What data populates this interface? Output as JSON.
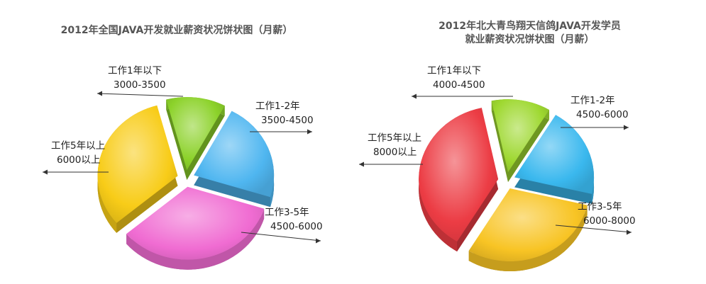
{
  "chart_data": [
    {
      "type": "pie",
      "title": "2012年全国JAVA开发就业薪资状况饼状图（月薪）",
      "slices": [
        {
          "label": "工作1年以下",
          "range": "3000-3500",
          "value": 12,
          "color": "#8cd22a"
        },
        {
          "label": "工作1-2年",
          "range": "3500-4500",
          "value": 22,
          "color": "#4fb6f0"
        },
        {
          "label": "工作3-5年",
          "range": "4500-6000",
          "value": 34,
          "color": "#f06cd2"
        },
        {
          "label": "工作5年以上",
          "range": "6000以上",
          "value": 32,
          "color": "#f8cc18"
        }
      ]
    },
    {
      "type": "pie",
      "title_lines": [
        "2012年北大青鸟翔天信鸽JAVA开发学员",
        "就业薪资状况饼状图（月薪）"
      ],
      "slices": [
        {
          "label": "工作1年以下",
          "range": "4000-4500",
          "value": 12,
          "color": "#9ed830"
        },
        {
          "label": "工作1-2年",
          "range": "4500-6000",
          "value": 20,
          "color": "#3ab8ee"
        },
        {
          "label": "工作3-5年",
          "range": "6000-8000",
          "value": 30,
          "color": "#f8c424"
        },
        {
          "label": "工作5年以上",
          "range": "8000以上",
          "value": 38,
          "color": "#ec3c44"
        }
      ]
    }
  ]
}
